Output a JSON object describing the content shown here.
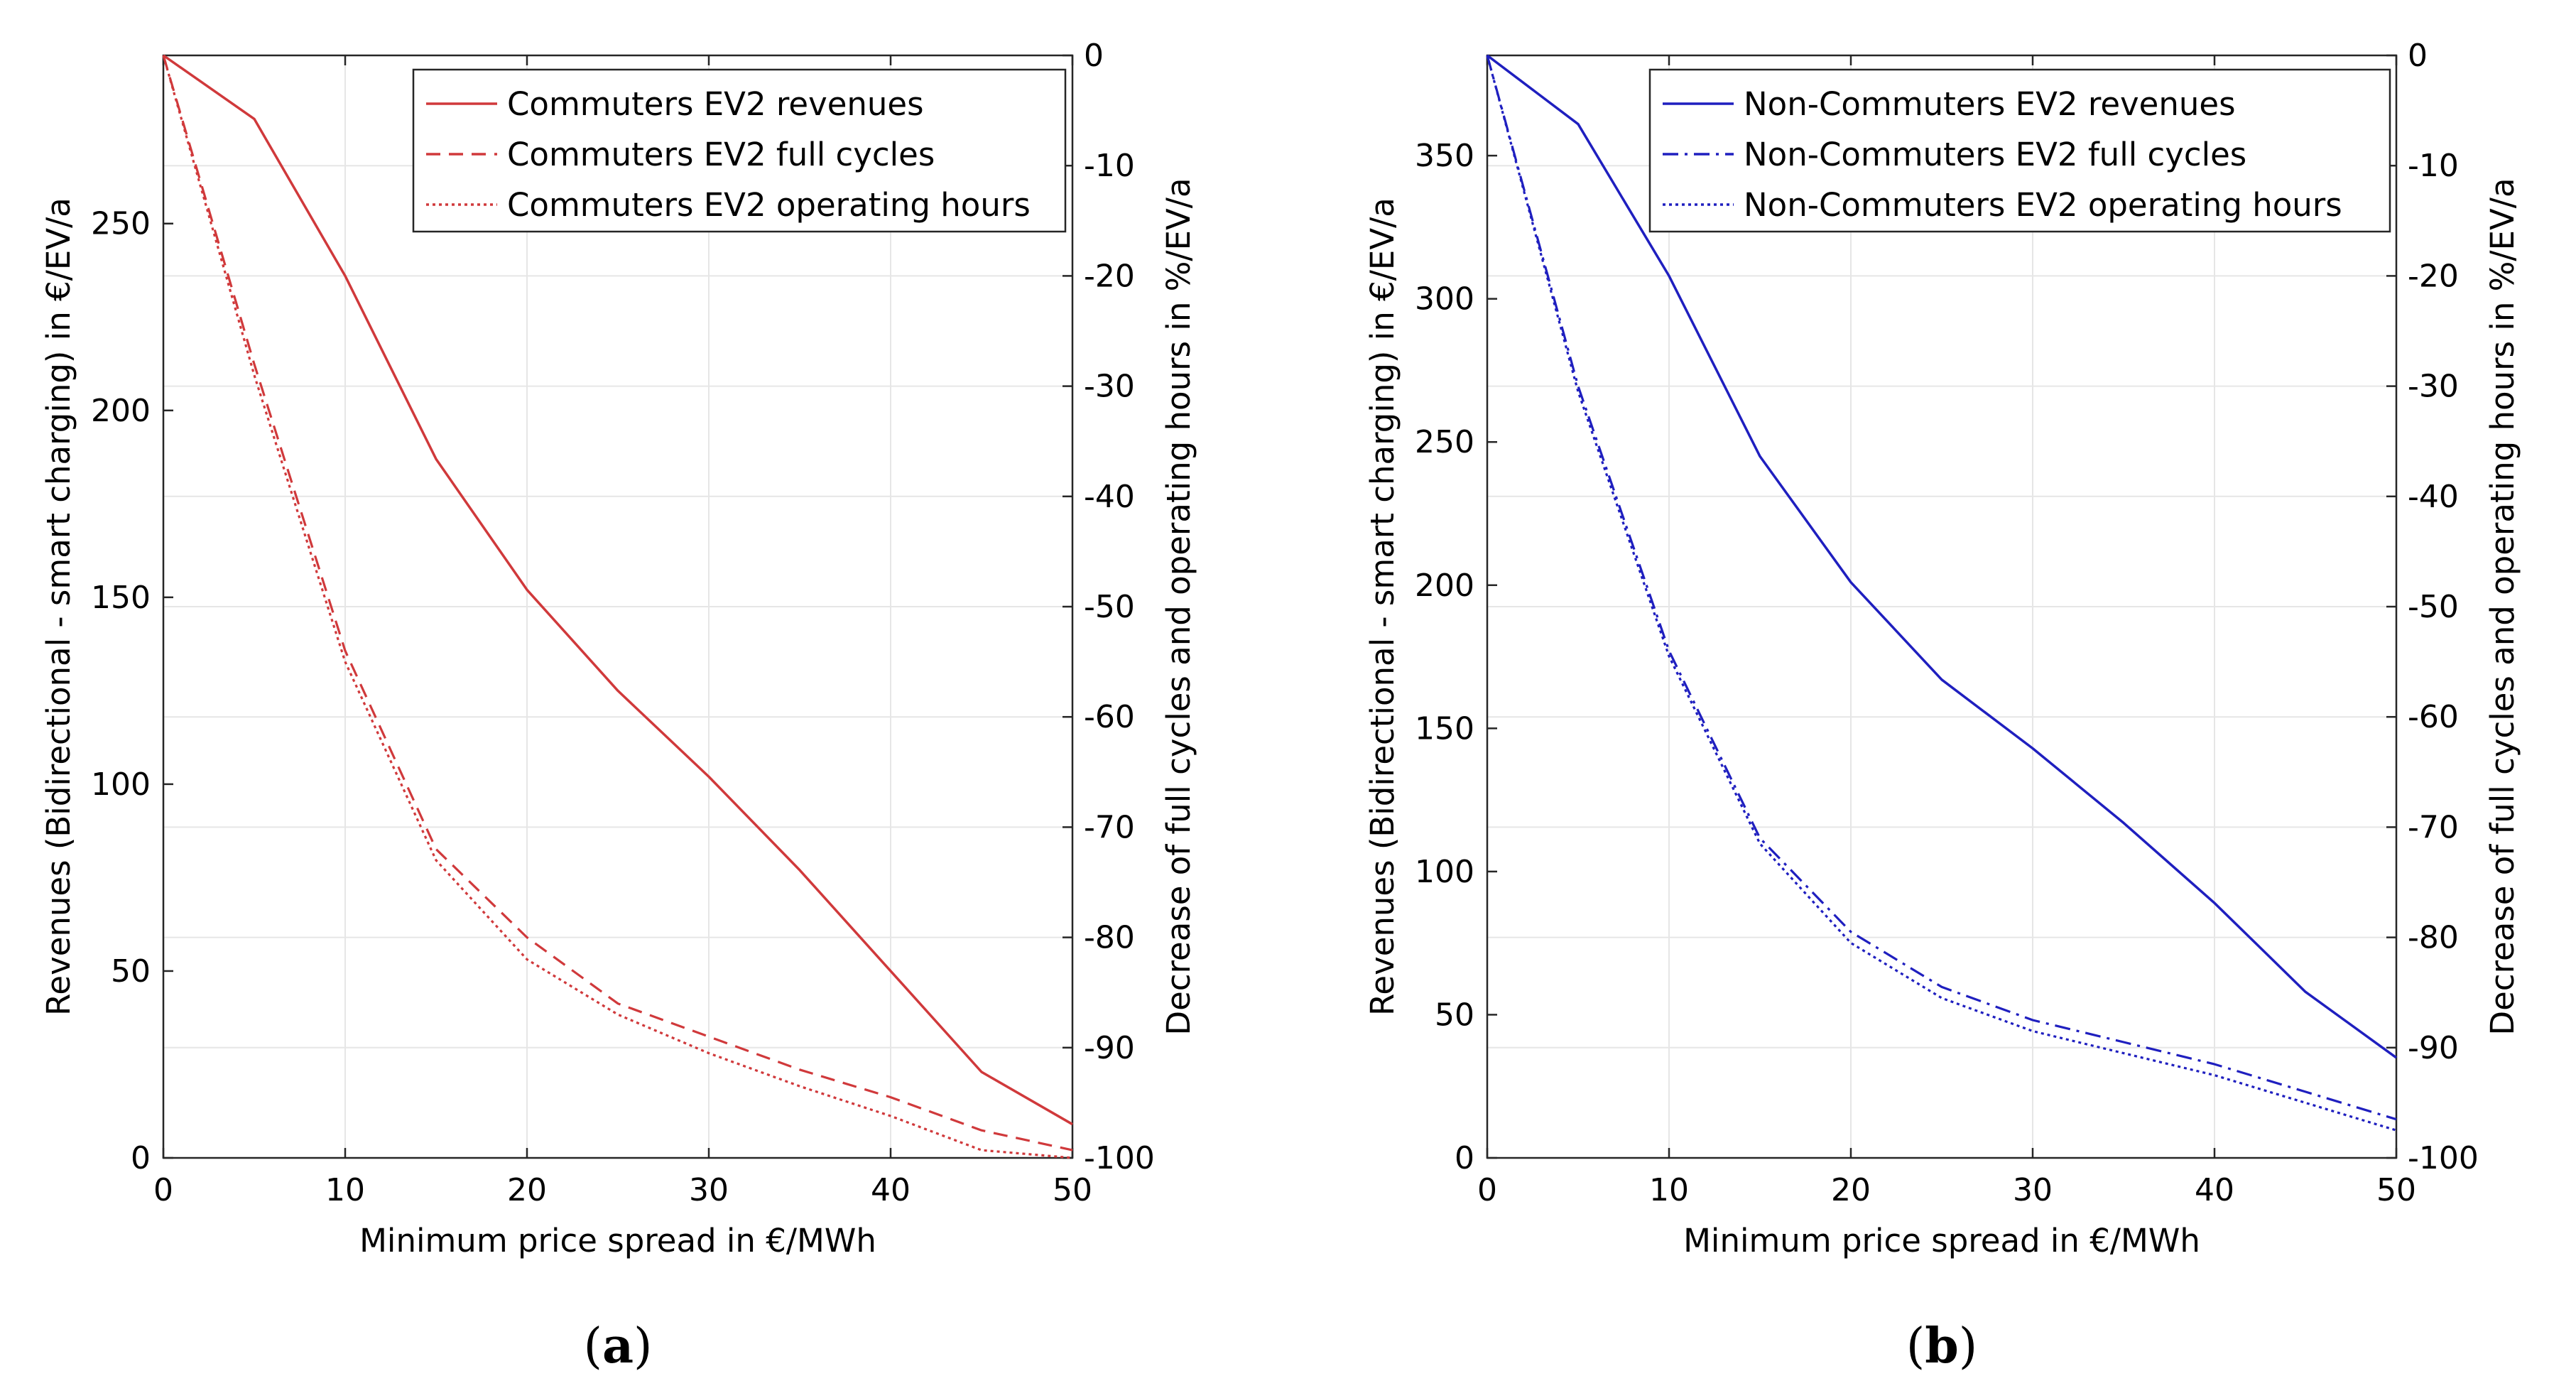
{
  "chart_data": [
    {
      "type": "line",
      "panel_label": "a",
      "xlabel": "Minimum price spread in €/MWh",
      "ylabel": "Revenues (Bidirectional - smart charging) in €/EV/a",
      "ylabel_right": "Decrease of full cycles and operating hours in %/EV/a",
      "x": [
        0,
        5,
        10,
        15,
        20,
        25,
        30,
        35,
        40,
        45,
        50
      ],
      "xlim": [
        0,
        50
      ],
      "xticks": [
        0,
        10,
        20,
        30,
        40,
        50
      ],
      "ylim": [
        0,
        295
      ],
      "yticks": [
        0,
        50,
        100,
        150,
        200,
        250
      ],
      "ylim_right": [
        -100,
        0
      ],
      "yticks_right": [
        0,
        -10,
        -20,
        -30,
        -40,
        -50,
        -60,
        -70,
        -80,
        -90,
        -100
      ],
      "grid": true,
      "legend_position": "top-right",
      "color": "#d0393b",
      "series": [
        {
          "name": "Commuters EV2 revenues",
          "axis": "left",
          "style": "solid",
          "values": [
            295,
            278,
            236,
            187,
            152,
            125,
            102,
            77,
            50,
            23,
            9
          ]
        },
        {
          "name": "Commuters EV2 full cycles",
          "axis": "right",
          "style": "dashed",
          "values": [
            0,
            -28,
            -54,
            -72,
            -80,
            -86,
            -89,
            -92,
            -94.5,
            -97.5,
            -99.3
          ]
        },
        {
          "name": "Commuters EV2 operating hours",
          "axis": "right",
          "style": "dotted",
          "values": [
            0,
            -29,
            -55,
            -73,
            -82,
            -87,
            -90.5,
            -93.5,
            -96.2,
            -99.3,
            -100
          ]
        }
      ]
    },
    {
      "type": "line",
      "panel_label": "b",
      "xlabel": "Minimum price spread in €/MWh",
      "ylabel": "Revenues (Bidirectional - smart charging) in €/EV/a",
      "ylabel_right": "Decrease of full cycles and operating hours in %/EV/a",
      "x": [
        0,
        5,
        10,
        15,
        20,
        25,
        30,
        35,
        40,
        45,
        50
      ],
      "xlim": [
        0,
        50
      ],
      "xticks": [
        0,
        10,
        20,
        30,
        40,
        50
      ],
      "ylim": [
        0,
        385
      ],
      "yticks": [
        0,
        50,
        100,
        150,
        200,
        250,
        300,
        350
      ],
      "ylim_right": [
        -100,
        0
      ],
      "yticks_right": [
        0,
        -10,
        -20,
        -30,
        -40,
        -50,
        -60,
        -70,
        -80,
        -90,
        -100
      ],
      "grid": true,
      "legend_position": "top-right",
      "color": "#1f1fbf",
      "series": [
        {
          "name": "Non-Commuters EV2 revenues",
          "axis": "left",
          "style": "solid",
          "values": [
            385,
            361,
            308,
            245,
            201,
            167,
            143,
            117,
            89,
            58,
            35
          ]
        },
        {
          "name": "Non-Commuters EV2 full cycles",
          "axis": "right",
          "style": "dashdot",
          "values": [
            0,
            -30,
            -54,
            -71,
            -79.5,
            -84.5,
            -87.5,
            -89.5,
            -91.5,
            -94,
            -96.5
          ]
        },
        {
          "name": "Non-Commuters EV2 operating hours",
          "axis": "right",
          "style": "dotted",
          "values": [
            0,
            -30.5,
            -54.5,
            -71.5,
            -80.5,
            -85.5,
            -88.5,
            -90.5,
            -92.5,
            -95,
            -97.5
          ]
        }
      ]
    }
  ]
}
